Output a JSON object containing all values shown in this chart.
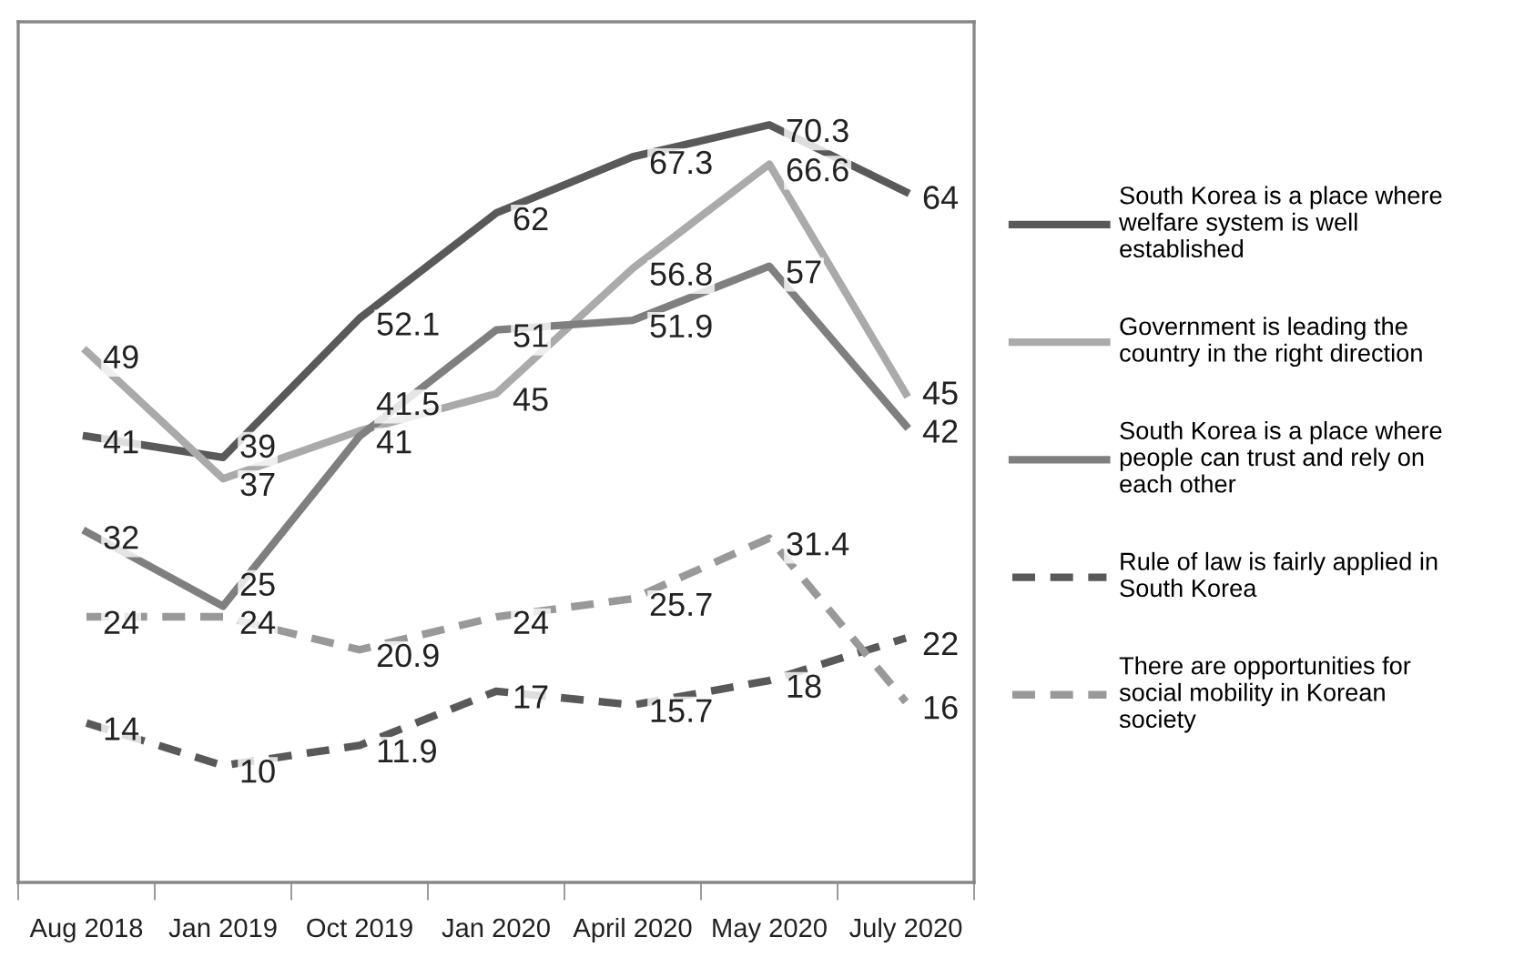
{
  "chart_data": {
    "type": "line",
    "categories": [
      "Aug 2018",
      "Jan 2019",
      "Oct 2019",
      "Jan 2020",
      "April 2020",
      "May 2020",
      "July 2020"
    ],
    "series": [
      {
        "name": "South Korea is a place where\nwelfare system is well\nestablished",
        "color": "#595959",
        "line_style": "solid",
        "values": [
          41,
          39,
          52.1,
          62,
          67.3,
          70.3,
          64
        ]
      },
      {
        "name": "Government is leading the\ncountry in the right direction",
        "color": "#aaaaaa",
        "line_style": "solid",
        "values": [
          49,
          37,
          41.5,
          45,
          56.8,
          66.6,
          45
        ]
      },
      {
        "name": "South Korea is a place where\npeople can trust and rely on\neach other",
        "color": "#7f7f7f",
        "line_style": "solid",
        "values": [
          32,
          25,
          41,
          51,
          51.9,
          57,
          42
        ]
      },
      {
        "name": "Rule of law is fairly applied in\nSouth Korea",
        "color": "#595959",
        "line_style": "dashed",
        "values": [
          14,
          10,
          11.9,
          17,
          15.7,
          18,
          22
        ]
      },
      {
        "name": "There are opportunities for\nsocial mobility in Korean\nsociety",
        "color": "#999999",
        "line_style": "dashed",
        "values": [
          24,
          24,
          20.9,
          24,
          25.7,
          31.4,
          16
        ]
      }
    ],
    "ylim": [
      -1,
      80
    ],
    "tick_labels": "x",
    "data_labels": true,
    "grid": false,
    "legend": "right",
    "marker": "none"
  }
}
